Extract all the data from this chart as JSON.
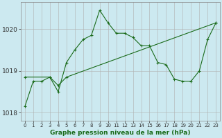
{
  "title": "Graphe pression niveau de la mer (hPa)",
  "background_color": "#cce9f0",
  "grid_color": "#b0b0b0",
  "line_color": "#1a6b1a",
  "xlim": [
    -0.5,
    23.5
  ],
  "ylim": [
    1017.8,
    1020.65
  ],
  "yticks": [
    1018,
    1019,
    1020
  ],
  "xticks": [
    0,
    1,
    2,
    3,
    4,
    5,
    6,
    7,
    8,
    9,
    10,
    11,
    12,
    13,
    14,
    15,
    16,
    17,
    18,
    19,
    20,
    21,
    22,
    23
  ],
  "series1_x": [
    0,
    1,
    2,
    3,
    4,
    5,
    6,
    7,
    8,
    9,
    10,
    11,
    12,
    13,
    14,
    15,
    16,
    17,
    18,
    19,
    20,
    21,
    22,
    23
  ],
  "series1_y": [
    1018.15,
    1018.75,
    1018.75,
    1018.85,
    1018.5,
    1019.2,
    1019.5,
    1019.75,
    1019.85,
    1020.45,
    1020.15,
    1019.9,
    1019.9,
    1019.8,
    1019.6,
    1019.6,
    1019.2,
    1019.15,
    1018.8,
    1018.75,
    1018.75,
    1019.0,
    1019.75,
    1020.15
  ],
  "series2_x": [
    0,
    3,
    4,
    5,
    23
  ],
  "series2_y": [
    1018.85,
    1018.85,
    1018.65,
    1018.85,
    1020.15
  ]
}
